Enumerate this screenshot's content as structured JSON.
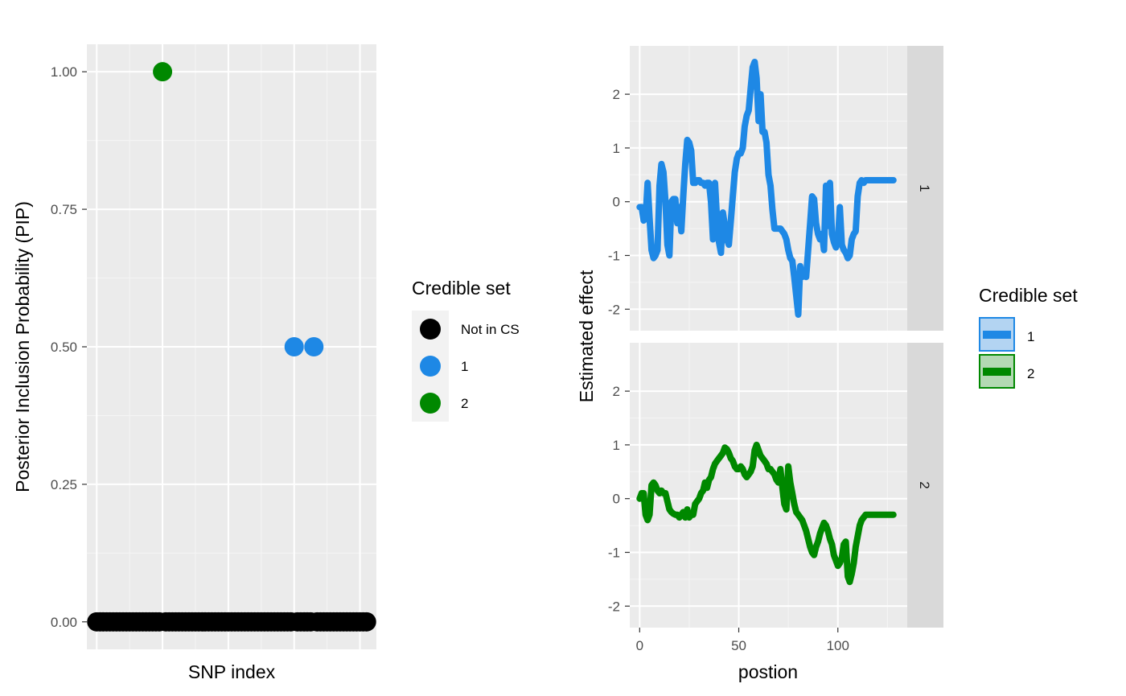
{
  "chart_data": [
    {
      "type": "scatter",
      "xlabel": "SNP index",
      "ylabel": "Posterior Inclusion Probability (PIP)",
      "ylim": [
        -0.05,
        1.05
      ],
      "y_ticks": [
        0,
        0.25,
        0.5,
        0.75,
        1
      ],
      "y_tick_labels": [
        "0.00",
        "0.25",
        "0.50",
        "0.75",
        "1.00"
      ],
      "x_ticks_labeled": false,
      "grid": true,
      "legend": {
        "title": "Credible set",
        "position": "right",
        "entries": [
          {
            "label": "Not in CS",
            "color": "#000000"
          },
          {
            "label": "1",
            "color": "#1e88e5"
          },
          {
            "label": "2",
            "color": "#008800"
          }
        ]
      },
      "points": [
        {
          "x": 21,
          "y": 1.0,
          "cs": "2"
        },
        {
          "x": 61,
          "y": 0.5,
          "cs": "1"
        },
        {
          "x": 67,
          "y": 0.5,
          "cs": "1"
        }
      ],
      "zero_points": {
        "x_range": [
          1,
          83
        ],
        "y": 0,
        "cs": "Not in CS"
      }
    },
    {
      "type": "line",
      "xlabel": "postion",
      "ylabel": "Estimated effect",
      "xlim": [
        -5,
        135
      ],
      "x_ticks": [
        0,
        50,
        100
      ],
      "ylim": [
        -2.4,
        2.9
      ],
      "y_ticks": [
        -2,
        -1,
        0,
        1,
        2
      ],
      "grid": true,
      "facets": [
        "1",
        "2"
      ],
      "legend": {
        "title": "Credible set",
        "position": "right",
        "entries": [
          {
            "label": "1",
            "color": "#1e88e5",
            "fill": "#b3d4f2"
          },
          {
            "label": "2",
            "color": "#008800",
            "fill": "#b3d9b3"
          }
        ]
      },
      "series": [
        {
          "name": "1",
          "color": "#1e88e5",
          "x": [
            0,
            1,
            2,
            3,
            4,
            5,
            6,
            7,
            8,
            9,
            10,
            11,
            12,
            13,
            14,
            15,
            16,
            17,
            18,
            19,
            20,
            21,
            22,
            23,
            24,
            25,
            26,
            27,
            28,
            29,
            30,
            31,
            32,
            33,
            34,
            35,
            36,
            37,
            38,
            39,
            40,
            41,
            42,
            43,
            44,
            45,
            46,
            47,
            48,
            49,
            50,
            51,
            52,
            53,
            54,
            55,
            56,
            57,
            58,
            59,
            60,
            61,
            62,
            63,
            64,
            65,
            66,
            67,
            68,
            69,
            70,
            71,
            72,
            73,
            74,
            75,
            76,
            77,
            78,
            79,
            80,
            81,
            82,
            83,
            84,
            85,
            86,
            87,
            88,
            89,
            90,
            91,
            92,
            93,
            94,
            95,
            96,
            97,
            98,
            99,
            100,
            101,
            102,
            103,
            104,
            105,
            106,
            107,
            108,
            109,
            110,
            111,
            112,
            113,
            114,
            115,
            116,
            117,
            118,
            119,
            120,
            121,
            122,
            123,
            124,
            125,
            126,
            127,
            128
          ],
          "values": [
            -0.1,
            -0.1,
            -0.35,
            -0.3,
            0.35,
            -0.3,
            -0.9,
            -1.05,
            -1.0,
            -0.9,
            0.3,
            0.7,
            0.55,
            0.0,
            -0.8,
            -1.0,
            0.0,
            0.05,
            0.05,
            -0.4,
            -0.1,
            -0.55,
            0.1,
            0.7,
            1.15,
            1.1,
            0.95,
            0.35,
            0.35,
            0.4,
            0.4,
            0.35,
            0.35,
            0.3,
            0.35,
            0.35,
            0.0,
            -0.7,
            0.35,
            -0.3,
            -0.75,
            -0.95,
            -0.2,
            -0.45,
            -0.7,
            -0.8,
            -0.35,
            0.1,
            0.55,
            0.8,
            0.9,
            0.9,
            1.0,
            1.4,
            1.6,
            1.7,
            2.1,
            2.5,
            2.6,
            2.3,
            1.5,
            2.0,
            1.3,
            1.3,
            1.1,
            0.5,
            0.3,
            -0.15,
            -0.5,
            -0.5,
            -0.5,
            -0.5,
            -0.55,
            -0.6,
            -0.7,
            -0.9,
            -1.05,
            -1.1,
            -1.4,
            -1.75,
            -2.1,
            -1.2,
            -1.4,
            -1.3,
            -1.4,
            -0.9,
            -0.4,
            0.1,
            0.05,
            -0.4,
            -0.6,
            -0.7,
            -0.6,
            -0.9,
            0.3,
            -0.45,
            0.35,
            -0.6,
            -0.75,
            -0.85,
            -0.7,
            -0.1,
            -0.8,
            -0.9,
            -0.95,
            -1.05,
            -1.0,
            -0.7,
            -0.6,
            -0.55,
            0.1,
            0.35,
            0.4,
            0.35,
            0.4,
            0.4,
            0.4,
            0.4,
            0.4,
            0.4,
            0.4,
            0.4,
            0.4,
            0.4,
            0.4,
            0.4,
            0.4,
            0.4,
            0.4
          ]
        },
        {
          "name": "2",
          "color": "#008800",
          "x": [
            0,
            1,
            2,
            3,
            4,
            5,
            6,
            7,
            8,
            9,
            10,
            11,
            12,
            13,
            14,
            15,
            16,
            17,
            18,
            19,
            20,
            21,
            22,
            23,
            24,
            25,
            26,
            27,
            28,
            29,
            30,
            31,
            32,
            33,
            34,
            35,
            36,
            37,
            38,
            39,
            40,
            41,
            42,
            43,
            44,
            45,
            46,
            47,
            48,
            49,
            50,
            51,
            52,
            53,
            54,
            55,
            56,
            57,
            58,
            59,
            60,
            61,
            62,
            63,
            64,
            65,
            66,
            67,
            68,
            69,
            70,
            71,
            72,
            73,
            74,
            75,
            76,
            77,
            78,
            79,
            80,
            81,
            82,
            83,
            84,
            85,
            86,
            87,
            88,
            89,
            90,
            91,
            92,
            93,
            94,
            95,
            96,
            97,
            98,
            99,
            100,
            101,
            102,
            103,
            104,
            105,
            106,
            107,
            108,
            109,
            110,
            111,
            112,
            113,
            114,
            115,
            116,
            117,
            118,
            119,
            120,
            121,
            122,
            123,
            124,
            125,
            126,
            127,
            128
          ],
          "values": [
            0.0,
            0.1,
            0.1,
            -0.3,
            -0.4,
            -0.3,
            0.25,
            0.3,
            0.25,
            0.15,
            0.1,
            0.15,
            0.1,
            0.1,
            -0.05,
            -0.2,
            -0.25,
            -0.28,
            -0.3,
            -0.3,
            -0.35,
            -0.3,
            -0.25,
            -0.35,
            -0.2,
            -0.35,
            -0.3,
            -0.3,
            -0.1,
            -0.05,
            0.0,
            0.1,
            0.15,
            0.3,
            0.2,
            0.35,
            0.4,
            0.55,
            0.65,
            0.7,
            0.75,
            0.8,
            0.85,
            0.95,
            0.92,
            0.85,
            0.75,
            0.7,
            0.6,
            0.55,
            0.55,
            0.6,
            0.55,
            0.45,
            0.4,
            0.45,
            0.5,
            0.6,
            0.9,
            1.0,
            0.9,
            0.8,
            0.75,
            0.7,
            0.65,
            0.55,
            0.55,
            0.5,
            0.45,
            0.35,
            0.3,
            0.55,
            0.2,
            -0.1,
            -0.2,
            0.6,
            0.3,
            0.1,
            -0.1,
            -0.25,
            -0.3,
            -0.35,
            -0.4,
            -0.5,
            -0.6,
            -0.75,
            -0.9,
            -1.0,
            -1.05,
            -0.9,
            -0.8,
            -0.65,
            -0.55,
            -0.45,
            -0.5,
            -0.6,
            -0.75,
            -0.85,
            -1.05,
            -1.15,
            -1.25,
            -1.2,
            -1.1,
            -0.85,
            -0.8,
            -1.45,
            -1.55,
            -1.4,
            -1.2,
            -0.9,
            -0.7,
            -0.5,
            -0.4,
            -0.35,
            -0.3,
            -0.3,
            -0.3,
            -0.3,
            -0.3,
            -0.3,
            -0.3,
            -0.3,
            -0.3,
            -0.3,
            -0.3,
            -0.3,
            -0.3,
            -0.3,
            -0.3
          ]
        }
      ]
    }
  ]
}
